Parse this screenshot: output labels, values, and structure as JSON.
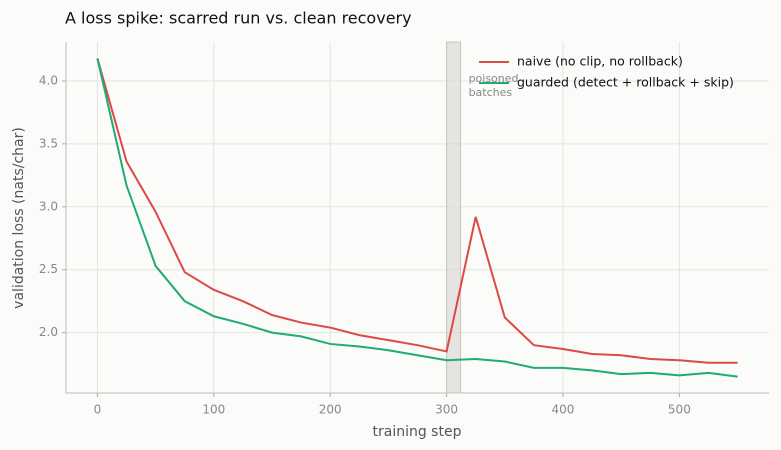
{
  "chart_data": {
    "type": "line",
    "title": "A loss spike: scarred run vs. clean recovery",
    "x_label": "training step",
    "y_label": "validation loss (nats/char)",
    "x": [
      0,
      25,
      50,
      75,
      100,
      125,
      150,
      175,
      200,
      225,
      250,
      275,
      300,
      325,
      350,
      375,
      400,
      425,
      450,
      475,
      500,
      525,
      550
    ],
    "series": [
      {
        "name": "naive (no clip, no rollback)",
        "color": "#dc4a45",
        "values": [
          4.18,
          3.36,
          2.96,
          2.48,
          2.34,
          2.25,
          2.14,
          2.08,
          2.04,
          1.98,
          1.94,
          1.9,
          1.85,
          2.92,
          2.12,
          1.9,
          1.87,
          1.83,
          1.82,
          1.79,
          1.78,
          1.76,
          1.76
        ]
      },
      {
        "name": "guarded (detect + rollback + skip)",
        "color": "#1faa78",
        "values": [
          4.18,
          3.17,
          2.53,
          2.25,
          2.13,
          2.07,
          2.0,
          1.97,
          1.91,
          1.89,
          1.86,
          1.82,
          1.78,
          1.79,
          1.77,
          1.72,
          1.72,
          1.7,
          1.67,
          1.68,
          1.66,
          1.68,
          1.65
        ]
      }
    ],
    "shade": [
      300,
      312
    ],
    "shade_label": [
      "poisoned",
      "batches"
    ],
    "xlim": [
      -27,
      577
    ],
    "ylim": [
      1.52,
      4.31
    ],
    "xticks": [
      0,
      100,
      200,
      300,
      400,
      500
    ],
    "yticks": [
      {
        "value": 2,
        "label": "2.0"
      },
      {
        "value": 2.5,
        "label": "2.5"
      },
      {
        "value": 3,
        "label": "3.0"
      },
      {
        "value": 3.5,
        "label": "3.5"
      },
      {
        "value": 4,
        "label": "4.0"
      }
    ],
    "grid": true,
    "legend": "upper right"
  }
}
